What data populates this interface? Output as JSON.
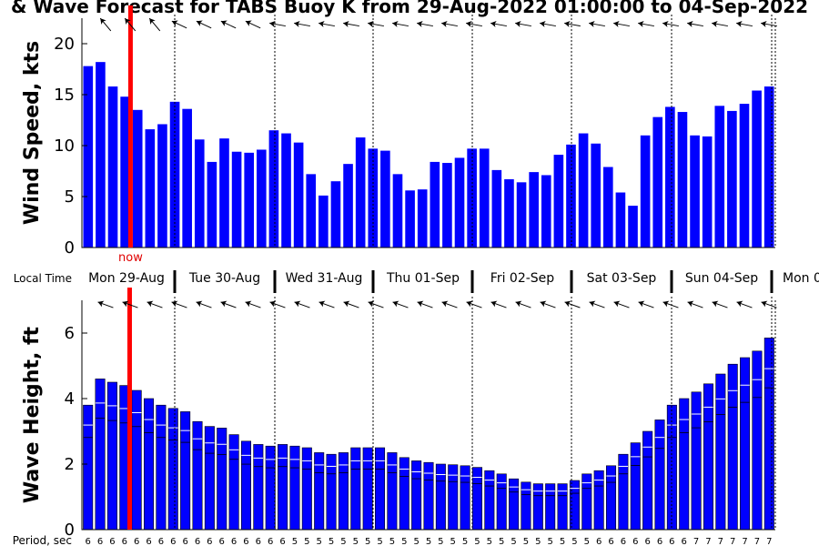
{
  "title": "& Wave Forecast for TABS Buoy K from 29-Aug-2022 01:00:00 to 04-Sep-2022",
  "colors": {
    "bar": "#0000ff",
    "now_line": "#ff0000",
    "now_text": "#e00000",
    "inner_line": "#ffffff"
  },
  "local_time_label": "Local Time",
  "period_label": "Period, sec",
  "now_label": "now",
  "days": [
    "Mon 29-Aug",
    "Tue 30-Aug",
    "Wed 31-Aug",
    "Thu 01-Sep",
    "Fri 02-Sep",
    "Sat 03-Sep",
    "Sun 04-Sep",
    "Mon 0"
  ],
  "chart_data": [
    {
      "type": "bar",
      "title": "& Wave Forecast for TABS Buoy K from 29-Aug-2022 01:00:00 to 04-Sep-2022",
      "ylabel": "Wind Speed, kts",
      "ylim": [
        0,
        22.5
      ],
      "yticks": [
        "0",
        "5",
        "10",
        "15",
        "20"
      ],
      "now_index": 4,
      "values": [
        17.8,
        18.2,
        15.8,
        14.8,
        13.5,
        11.6,
        12.1,
        14.3,
        13.6,
        10.6,
        8.4,
        10.7,
        9.4,
        9.3,
        9.6,
        11.5,
        11.2,
        10.3,
        7.2,
        5.1,
        6.5,
        8.2,
        10.8,
        9.7,
        9.5,
        7.2,
        5.6,
        5.7,
        8.4,
        8.3,
        8.8,
        9.7,
        9.7,
        7.6,
        6.7,
        6.4,
        7.4,
        7.1,
        9.1,
        10.1,
        11.2,
        10.2,
        7.9,
        5.4,
        4.1,
        11.0,
        12.8,
        13.8,
        13.3,
        11.0,
        10.9,
        13.9,
        13.4,
        14.1,
        15.4,
        15.8
      ]
    },
    {
      "type": "bar",
      "ylabel": "Wave Height, ft",
      "ylim": [
        0,
        7
      ],
      "yticks": [
        "0",
        "2",
        "4",
        "6"
      ],
      "now_index": 4,
      "values": [
        3.8,
        4.6,
        4.5,
        4.4,
        4.25,
        4.0,
        3.8,
        3.7,
        3.6,
        3.3,
        3.15,
        3.1,
        2.9,
        2.7,
        2.6,
        2.55,
        2.6,
        2.55,
        2.5,
        2.35,
        2.3,
        2.35,
        2.5,
        2.5,
        2.5,
        2.35,
        2.2,
        2.1,
        2.05,
        2.0,
        1.98,
        1.95,
        1.9,
        1.8,
        1.7,
        1.55,
        1.45,
        1.4,
        1.4,
        1.4,
        1.5,
        1.7,
        1.8,
        1.95,
        2.3,
        2.65,
        3.0,
        3.35,
        3.8,
        4.0,
        4.2,
        4.45,
        4.75,
        5.05,
        5.25,
        5.45,
        5.85
      ],
      "periods": [
        "6",
        "6",
        "6",
        "6",
        "6",
        "6",
        "6",
        "6",
        "6",
        "6",
        "6",
        "6",
        "6",
        "6",
        "6",
        "6",
        "6",
        "5",
        "5",
        "5",
        "5",
        "5",
        "5",
        "5",
        "5",
        "5",
        "5",
        "5",
        "5",
        "5",
        "5",
        "5",
        "5",
        "5",
        "5",
        "5",
        "5",
        "5",
        "5",
        "5",
        "5",
        "5",
        "6",
        "6",
        "6",
        "6",
        "6",
        "6",
        "6",
        "6",
        "7",
        "7",
        "7",
        "7",
        "7",
        "7",
        "7"
      ]
    }
  ]
}
